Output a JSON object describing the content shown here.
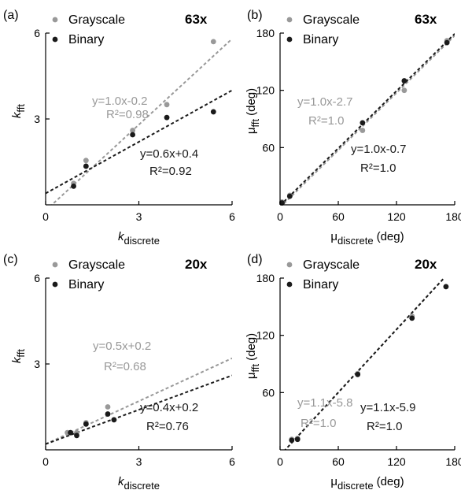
{
  "colors": {
    "grayscale": "#999999",
    "binary": "#1a1a1a",
    "axis": "#000000"
  },
  "chart_data": [
    {
      "type": "scatter",
      "panel_label": "(a)",
      "magnification": "63x",
      "xlabel": "k",
      "xlabel_sub": "discrete",
      "xunit": "",
      "ylabel": "k",
      "ylabel_sub": "fft",
      "yunit": "",
      "xlim": [
        0,
        6
      ],
      "ylim": [
        0,
        6
      ],
      "xticks": [
        0,
        3,
        6
      ],
      "yticks": [
        3,
        6
      ],
      "legend": [
        "Grayscale",
        "Binary"
      ],
      "series": [
        {
          "name": "Grayscale",
          "points": [
            [
              0.9,
              0.75
            ],
            [
              1.3,
              1.55
            ],
            [
              2.8,
              2.6
            ],
            [
              3.9,
              3.5
            ],
            [
              5.4,
              5.7
            ]
          ],
          "fit": {
            "slope": 1.0,
            "intercept": -0.2,
            "label": "y=1.0x-0.2",
            "r2": "R²=0.98"
          }
        },
        {
          "name": "Binary",
          "points": [
            [
              0.9,
              0.65
            ],
            [
              1.3,
              1.35
            ],
            [
              2.8,
              2.45
            ],
            [
              3.9,
              3.05
            ],
            [
              5.4,
              3.25
            ]
          ],
          "fit": {
            "slope": 0.6,
            "intercept": 0.4,
            "label": "y=0.6x+0.4",
            "r2": "R²=0.92"
          }
        }
      ]
    },
    {
      "type": "scatter",
      "panel_label": "(b)",
      "magnification": "63x",
      "xlabel": "μ",
      "xlabel_sub": "discrete",
      "xunit": "(deg)",
      "ylabel": "μ",
      "ylabel_sub": "fft",
      "yunit": "(deg)",
      "xlim": [
        0,
        180
      ],
      "ylim": [
        0,
        180
      ],
      "xticks": [
        0,
        60,
        120,
        180
      ],
      "yticks": [
        60,
        120,
        180
      ],
      "legend": [
        "Grayscale",
        "Binary"
      ],
      "series": [
        {
          "name": "Grayscale",
          "points": [
            [
              2,
              3
            ],
            [
              10,
              10
            ],
            [
              85,
              78
            ],
            [
              128,
              120
            ],
            [
              172,
              172
            ]
          ],
          "fit": {
            "slope": 1.0,
            "intercept": -2.7,
            "label": "y=1.0x-2.7",
            "r2": "R²=1.0"
          }
        },
        {
          "name": "Binary",
          "points": [
            [
              2,
              2
            ],
            [
              10,
              9
            ],
            [
              85,
              86
            ],
            [
              128,
              130
            ],
            [
              172,
              170
            ]
          ],
          "fit": {
            "slope": 1.0,
            "intercept": -0.7,
            "label": "y=1.0x-0.7",
            "r2": "R²=1.0"
          }
        }
      ]
    },
    {
      "type": "scatter",
      "panel_label": "(c)",
      "magnification": "20x",
      "xlabel": "k",
      "xlabel_sub": "discrete",
      "xunit": "",
      "ylabel": "k",
      "ylabel_sub": "fft",
      "yunit": "",
      "xlim": [
        0,
        6
      ],
      "ylim": [
        0,
        6
      ],
      "xticks": [
        0,
        3,
        6
      ],
      "yticks": [
        3,
        6
      ],
      "legend": [
        "Grayscale",
        "Binary"
      ],
      "series": [
        {
          "name": "Grayscale",
          "points": [
            [
              0.7,
              0.6
            ],
            [
              1.0,
              0.6
            ],
            [
              1.3,
              0.95
            ],
            [
              2.0,
              1.5
            ],
            [
              2.2,
              1.05
            ]
          ],
          "fit": {
            "slope": 0.5,
            "intercept": 0.2,
            "label": "y=0.5x+0.2",
            "r2": "R²=0.68"
          }
        },
        {
          "name": "Binary",
          "points": [
            [
              0.8,
              0.6
            ],
            [
              1.0,
              0.5
            ],
            [
              1.3,
              0.9
            ],
            [
              2.0,
              1.25
            ],
            [
              2.2,
              1.05
            ]
          ],
          "fit": {
            "slope": 0.4,
            "intercept": 0.2,
            "label": "y=0.4x+0.2",
            "r2": "R²=0.76"
          }
        }
      ]
    },
    {
      "type": "scatter",
      "panel_label": "(d)",
      "magnification": "20x",
      "xlabel": "μ",
      "xlabel_sub": "discrete",
      "xunit": "(deg)",
      "ylabel": "μ",
      "ylabel_sub": "fft",
      "yunit": "(deg)",
      "xlim": [
        0,
        180
      ],
      "ylim": [
        0,
        180
      ],
      "xticks": [
        0,
        60,
        120,
        180
      ],
      "yticks": [
        60,
        120,
        180
      ],
      "legend": [
        "Grayscale",
        "Binary"
      ],
      "series": [
        {
          "name": "Grayscale",
          "points": [
            [
              12,
              11
            ],
            [
              18,
              12
            ],
            [
              80,
              80
            ],
            [
              136,
              140
            ],
            [
              171,
              171
            ]
          ],
          "fit": {
            "slope": 1.1,
            "intercept": -5.8,
            "label": "y=1.1x-5.8",
            "r2": "R²=1.0"
          }
        },
        {
          "name": "Binary",
          "points": [
            [
              12,
              10
            ],
            [
              18,
              11
            ],
            [
              80,
              79
            ],
            [
              136,
              138
            ],
            [
              171,
              171
            ]
          ],
          "fit": {
            "slope": 1.1,
            "intercept": -5.9,
            "label": "y=1.1x-5.9",
            "r2": "R²=1.0"
          }
        }
      ]
    }
  ]
}
